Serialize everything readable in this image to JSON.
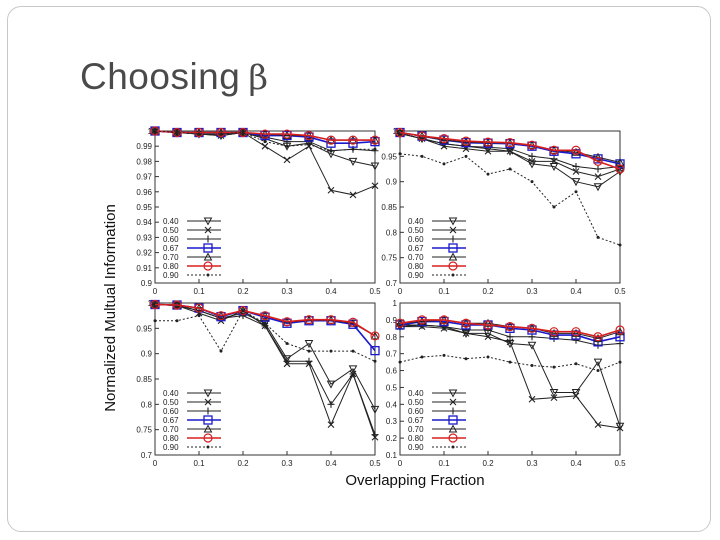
{
  "slide": {
    "title_text": "Choosing",
    "title_symbol": "β"
  },
  "figure": {
    "ylabel": "Normalized Multual Information",
    "xlabel": "Overlapping Fraction"
  },
  "chart_data": [
    {
      "type": "line",
      "panel": "top-left",
      "x": [
        0,
        0.05,
        0.1,
        0.15,
        0.2,
        0.25,
        0.3,
        0.35,
        0.4,
        0.45,
        0.5
      ],
      "xlim": [
        0,
        0.5
      ],
      "ylim": [
        0.9,
        1.0
      ],
      "xticks": [
        0,
        0.1,
        0.2,
        0.3,
        0.4,
        0.5
      ],
      "xtick_labels": [
        "0",
        "0.1",
        "0.2",
        "0.3",
        "0.4",
        "0.5"
      ],
      "yticks": [
        0.9,
        0.91,
        0.92,
        0.93,
        0.94,
        0.95,
        0.96,
        0.97,
        0.98,
        0.99,
        1.0
      ],
      "ytick_labels": [
        "0.9",
        "0.91",
        "0.92",
        "0.93",
        "0.94",
        "0.95",
        "0.96",
        "0.97",
        "0.98",
        "0.99",
        "1"
      ],
      "legend_position": "bottom-left",
      "series": [
        {
          "name": "0.40",
          "values": [
            1.0,
            0.999,
            0.998,
            0.997,
            0.999,
            0.995,
            0.99,
            0.992,
            0.985,
            0.98,
            0.977
          ]
        },
        {
          "name": "0.50",
          "values": [
            1.0,
            0.999,
            0.998,
            0.997,
            0.999,
            0.99,
            0.981,
            0.99,
            0.961,
            0.958,
            0.964
          ]
        },
        {
          "name": "0.60",
          "values": [
            1.0,
            0.999,
            0.998,
            0.998,
            0.999,
            0.996,
            0.993,
            0.993,
            0.987,
            0.988,
            0.987
          ]
        },
        {
          "name": "0.67",
          "values": [
            1.0,
            0.999,
            0.999,
            0.999,
            0.999,
            0.997,
            0.997,
            0.996,
            0.992,
            0.992,
            0.993
          ]
        },
        {
          "name": "0.70",
          "values": [
            1.0,
            0.999,
            0.999,
            0.999,
            0.999,
            0.998,
            0.997,
            0.997,
            0.994,
            0.994,
            0.994
          ]
        },
        {
          "name": "0.80",
          "values": [
            1.0,
            0.999,
            0.999,
            0.999,
            0.999,
            0.998,
            0.998,
            0.997,
            0.994,
            0.994,
            0.994
          ]
        },
        {
          "name": "0.90",
          "values": [
            1.0,
            0.999,
            0.998,
            0.998,
            0.999,
            0.993,
            0.99,
            0.991,
            0.987,
            0.988,
            0.988
          ]
        }
      ]
    },
    {
      "type": "line",
      "panel": "top-right",
      "x": [
        0,
        0.05,
        0.1,
        0.15,
        0.2,
        0.25,
        0.3,
        0.35,
        0.4,
        0.45,
        0.5
      ],
      "xlim": [
        0,
        0.5
      ],
      "ylim": [
        0.7,
        1.0
      ],
      "xticks": [
        0,
        0.1,
        0.2,
        0.3,
        0.4,
        0.5
      ],
      "xtick_labels": [
        "0",
        "0.1",
        "0.2",
        "0.3",
        "0.4",
        "0.5"
      ],
      "yticks": [
        0.7,
        0.75,
        0.8,
        0.85,
        0.9,
        0.95,
        1.0
      ],
      "ytick_labels": [
        "0.7",
        "0.75",
        "0.8",
        "0.85",
        "0.9",
        "0.95",
        "1"
      ],
      "legend_position": "bottom-left",
      "series": [
        {
          "name": "0.40",
          "values": [
            0.995,
            0.985,
            0.975,
            0.97,
            0.965,
            0.96,
            0.935,
            0.93,
            0.9,
            0.89,
            0.92
          ]
        },
        {
          "name": "0.50",
          "values": [
            0.995,
            0.985,
            0.97,
            0.965,
            0.96,
            0.96,
            0.94,
            0.94,
            0.92,
            0.91,
            0.925
          ]
        },
        {
          "name": "0.60",
          "values": [
            0.995,
            0.985,
            0.975,
            0.97,
            0.968,
            0.965,
            0.95,
            0.945,
            0.93,
            0.925,
            0.93
          ]
        },
        {
          "name": "0.67",
          "values": [
            0.997,
            0.99,
            0.982,
            0.977,
            0.976,
            0.975,
            0.97,
            0.96,
            0.955,
            0.945,
            0.935
          ]
        },
        {
          "name": "0.70",
          "values": [
            0.997,
            0.99,
            0.982,
            0.978,
            0.977,
            0.976,
            0.972,
            0.962,
            0.958,
            0.948,
            0.938
          ]
        },
        {
          "name": "0.80",
          "values": [
            0.997,
            0.99,
            0.985,
            0.98,
            0.978,
            0.977,
            0.972,
            0.962,
            0.962,
            0.94,
            0.925
          ]
        },
        {
          "name": "0.90",
          "values": [
            0.955,
            0.95,
            0.935,
            0.95,
            0.915,
            0.925,
            0.9,
            0.85,
            0.88,
            0.79,
            0.775
          ]
        }
      ]
    },
    {
      "type": "line",
      "panel": "bottom-left",
      "x": [
        0,
        0.05,
        0.1,
        0.15,
        0.2,
        0.25,
        0.3,
        0.35,
        0.4,
        0.45,
        0.5
      ],
      "xlim": [
        0,
        0.5
      ],
      "ylim": [
        0.7,
        1.0
      ],
      "xticks": [
        0,
        0.1,
        0.2,
        0.3,
        0.4,
        0.5
      ],
      "xtick_labels": [
        "0",
        "0.1",
        "0.2",
        "0.3",
        "0.4",
        "0.5"
      ],
      "yticks": [
        0.7,
        0.75,
        0.8,
        0.85,
        0.9,
        0.95,
        1.0
      ],
      "ytick_labels": [
        "0.7",
        "0.75",
        "0.8",
        "0.85",
        "0.9",
        "0.95",
        "1"
      ],
      "legend_position": "bottom-left",
      "series": [
        {
          "name": "0.40",
          "values": [
            0.997,
            0.995,
            0.985,
            0.97,
            0.98,
            0.96,
            0.89,
            0.92,
            0.84,
            0.87,
            0.79
          ]
        },
        {
          "name": "0.50",
          "values": [
            0.997,
            0.995,
            0.98,
            0.965,
            0.985,
            0.955,
            0.88,
            0.88,
            0.76,
            0.86,
            0.735
          ]
        },
        {
          "name": "0.60",
          "values": [
            0.997,
            0.995,
            0.985,
            0.97,
            0.975,
            0.955,
            0.885,
            0.885,
            0.8,
            0.86,
            0.74
          ]
        },
        {
          "name": "0.67",
          "values": [
            0.997,
            0.996,
            0.99,
            0.973,
            0.985,
            0.972,
            0.96,
            0.965,
            0.965,
            0.958,
            0.906
          ]
        },
        {
          "name": "0.70",
          "values": [
            0.997,
            0.996,
            0.99,
            0.975,
            0.985,
            0.975,
            0.962,
            0.966,
            0.966,
            0.96,
            0.935
          ]
        },
        {
          "name": "0.80",
          "values": [
            0.997,
            0.996,
            0.99,
            0.975,
            0.985,
            0.975,
            0.963,
            0.967,
            0.967,
            0.962,
            0.935
          ]
        },
        {
          "name": "0.90",
          "values": [
            0.965,
            0.965,
            0.975,
            0.905,
            0.985,
            0.96,
            0.92,
            0.905,
            0.905,
            0.905,
            0.885
          ]
        }
      ]
    },
    {
      "type": "line",
      "panel": "bottom-right",
      "x": [
        0,
        0.05,
        0.1,
        0.15,
        0.2,
        0.25,
        0.3,
        0.35,
        0.4,
        0.45,
        0.5
      ],
      "xlim": [
        0,
        0.5
      ],
      "ylim": [
        0.1,
        1.0
      ],
      "xticks": [
        0,
        0.1,
        0.2,
        0.3,
        0.4,
        0.5
      ],
      "xtick_labels": [
        "0",
        "0.1",
        "0.2",
        "0.3",
        "0.4",
        "0.5"
      ],
      "yticks": [
        0.1,
        0.2,
        0.3,
        0.4,
        0.5,
        0.6,
        0.7,
        0.8,
        0.9,
        1.0
      ],
      "ytick_labels": [
        "0.1",
        "0.2",
        "0.3",
        "0.4",
        "0.5",
        "0.6",
        "0.7",
        "0.8",
        "0.9",
        "1"
      ],
      "legend_position": "bottom-left",
      "series": [
        {
          "name": "0.40",
          "values": [
            0.86,
            0.87,
            0.86,
            0.82,
            0.82,
            0.76,
            0.75,
            0.47,
            0.47,
            0.65,
            0.27
          ]
        },
        {
          "name": "0.50",
          "values": [
            0.86,
            0.86,
            0.85,
            0.82,
            0.8,
            0.77,
            0.43,
            0.44,
            0.45,
            0.28,
            0.26
          ]
        },
        {
          "name": "0.60",
          "values": [
            0.87,
            0.87,
            0.86,
            0.84,
            0.84,
            0.8,
            0.8,
            0.79,
            0.78,
            0.75,
            0.76
          ]
        },
        {
          "name": "0.67",
          "values": [
            0.87,
            0.89,
            0.89,
            0.87,
            0.87,
            0.85,
            0.84,
            0.81,
            0.81,
            0.77,
            0.8
          ]
        },
        {
          "name": "0.70",
          "values": [
            0.88,
            0.89,
            0.9,
            0.88,
            0.88,
            0.86,
            0.85,
            0.82,
            0.82,
            0.79,
            0.83
          ]
        },
        {
          "name": "0.80",
          "values": [
            0.88,
            0.9,
            0.9,
            0.88,
            0.87,
            0.86,
            0.85,
            0.83,
            0.83,
            0.8,
            0.84
          ]
        },
        {
          "name": "0.90",
          "values": [
            0.65,
            0.68,
            0.69,
            0.67,
            0.68,
            0.65,
            0.63,
            0.62,
            0.64,
            0.6,
            0.65
          ]
        }
      ]
    }
  ]
}
